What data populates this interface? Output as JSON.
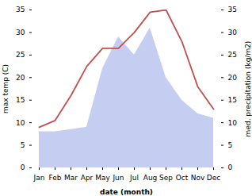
{
  "chart_data": {
    "type": "line",
    "xlabel": "date (month)",
    "ylabel": "max temp (C)",
    "y2label": "med. precipitation (kg/m2)",
    "categories": [
      "Jan",
      "Feb",
      "Mar",
      "Apr",
      "May",
      "Jun",
      "Jul",
      "Aug",
      "Sep",
      "Oct",
      "Nov",
      "Dec"
    ],
    "series": [
      {
        "type": "area",
        "axis": "y2",
        "color": "#c5cef0",
        "values": [
          8.0,
          8.0,
          8.5,
          9.0,
          22.0,
          29.0,
          25.0,
          31.0,
          20.0,
          15.0,
          12.0,
          11.0
        ]
      },
      {
        "type": "line",
        "color": "#c0504d",
        "values": [
          9.0,
          10.5,
          16.0,
          22.5,
          26.5,
          26.5,
          30.0,
          34.5,
          35.0,
          28.0,
          18.0,
          13.0
        ]
      }
    ],
    "ylim": [
      0,
      35
    ],
    "yticks": [
      0,
      5,
      10,
      15,
      20,
      25,
      30,
      35
    ],
    "y2lim": [
      0,
      35
    ],
    "y2ticks": [
      0,
      5,
      10,
      15,
      20,
      25,
      30,
      35
    ],
    "grid": false
  }
}
